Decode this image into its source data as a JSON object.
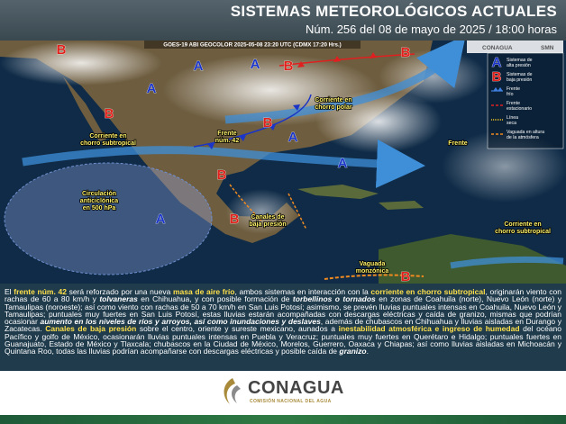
{
  "header": {
    "title": "SISTEMAS METEOROLÓGICOS ACTUALES",
    "subtitle": "Núm. 256 del 08 de mayo de 2025 / 18:00 horas"
  },
  "map": {
    "source": "GOES-19 ABI GEOCOLOR 2025-05-08 23:20 UTC (CDMX  17:20 Hrs.)",
    "logos": [
      "CONAGUA",
      "SMN"
    ],
    "legend": [
      "Sistemas de alta presión",
      "Sistemas de baja presión",
      "Frente frío",
      "Frente estacionario",
      "Línea seca",
      "Vaguada en altura de la atmósfera"
    ],
    "legend_symbols": [
      "A",
      "B"
    ],
    "pressure_centers": [
      "A",
      "A",
      "A",
      "A",
      "A",
      "A",
      "B",
      "B",
      "B",
      "B",
      "B",
      "B",
      "B",
      "B"
    ],
    "labels": [
      {
        "lines": [
          "Corriente en",
          "chorro polar"
        ]
      },
      {
        "lines": [
          "Corriente en",
          "chorro subtropical"
        ]
      },
      {
        "lines": [
          "Frente",
          "núm. 42"
        ]
      },
      {
        "lines": [
          "Circulación",
          "anticiclónica",
          "en 500 hPa"
        ]
      },
      {
        "lines": [
          "Canales de",
          "baja presión"
        ]
      },
      {
        "lines": [
          "Vaguada",
          "monzónica"
        ]
      },
      {
        "lines": [
          "Frente"
        ]
      },
      {
        "lines": [
          "Corriente en",
          "chorro subtropical"
        ]
      }
    ]
  },
  "body": {
    "segments": [
      "El ",
      "frente núm. 42",
      " será reforzado por una nueva ",
      "masa de aire frío",
      ", ambos sistemas en interacción con la ",
      "corriente en chorro subtropical",
      ", originarán viento con rachas de 60 a 80 km/h y ",
      "tolvaneras",
      " en Chihuahua, y con posible formación de ",
      "torbellinos o tornados",
      " en zonas de Coahuila (norte), Nuevo León (norte) y Tamaulipas (noroeste); así como viento con rachas de 50 a 70 km/h en San Luis Potosí; asimismo, se prevén lluvias puntuales intensas en Coahuila, Nuevo León y Tamaulipas; puntuales muy fuertes en San Luis Potosí, estas lluvias estarán acompañadas con descargas eléctricas y caída de granizo, mismas que podrían ocasionar ",
      "aumento en los niveles de ríos y arroyos, así como inundaciones y deslaves",
      ", además de chubascos en Chihuahua y lluvias aisladas en Durango y Zacatecas. ",
      "Canales de baja presión",
      " sobre el centro, oriente y sureste mexicano, aunados a ",
      "inestabilidad atmosférica e ingreso de humedad",
      " del océano Pacífico y golfo de México, ocasionarán lluvias puntuales intensas en Puebla y Veracruz; puntuales muy fuertes en Querétaro e Hidalgo; puntuales fuertes en Guanajuato, Estado de México y Tlaxcala; chubascos en la Ciudad de México, Morelos, Guerrero, Oaxaca y Chiapas; así como lluvias aisladas en Michoacán y Quintana Roo, todas las lluvias podrían acompañarse con descargas eléctricas y posible caída de ",
      "granizo",
      "."
    ]
  },
  "footer": {
    "logo": "CONAGUA",
    "subtitle": "COMISIÓN NACIONAL DEL AGUA"
  }
}
